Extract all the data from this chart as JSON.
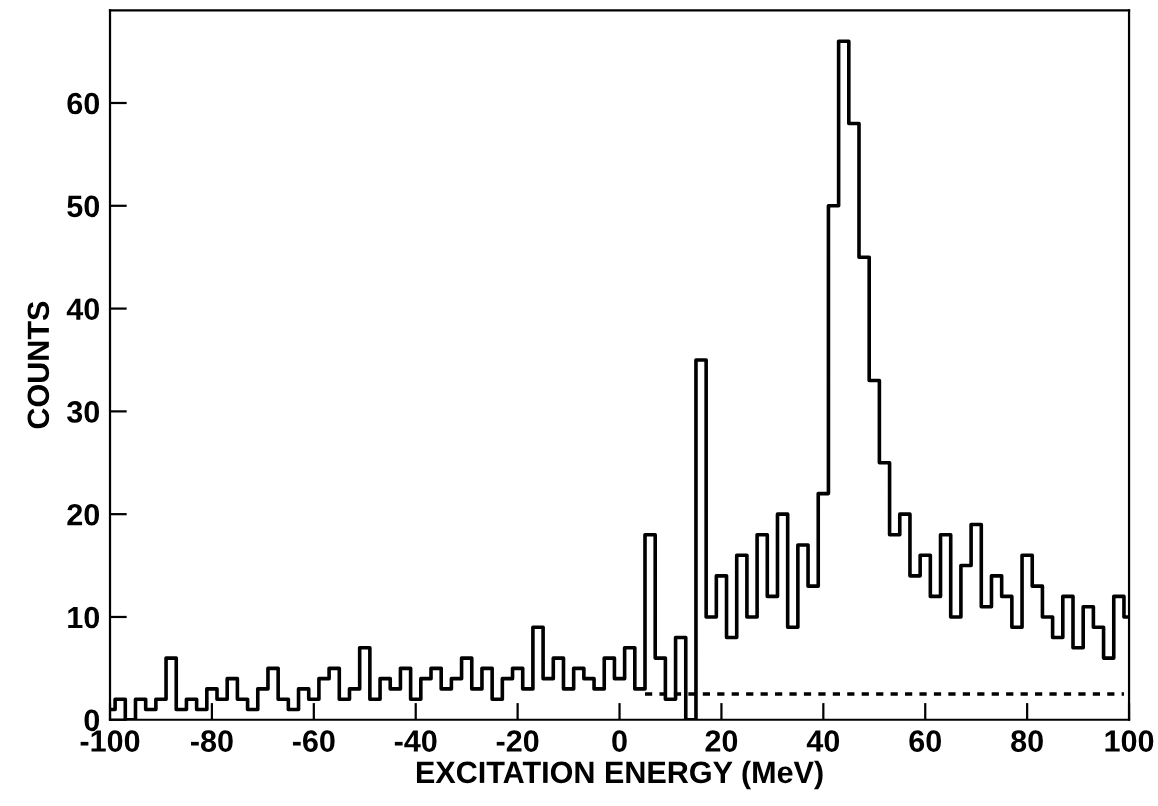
{
  "chart_data": {
    "type": "step",
    "xlabel": "EXCITATION ENERGY (MeV)",
    "ylabel": "COUNTS",
    "xlim": [
      -100,
      100
    ],
    "ylim": [
      0,
      69
    ],
    "xticks": [
      -100,
      -80,
      -60,
      -40,
      -20,
      0,
      20,
      40,
      60,
      80,
      100
    ],
    "yticks": [
      0,
      10,
      20,
      30,
      40,
      50,
      60
    ],
    "grid": false,
    "legend": false,
    "series": [
      {
        "color": "#000000",
        "line_style": "solid",
        "x": [
          -100,
          -98,
          -96,
          -94,
          -92,
          -90,
          -88,
          -86,
          -84,
          -82,
          -80,
          -78,
          -76,
          -74,
          -72,
          -70,
          -68,
          -66,
          -64,
          -62,
          -60,
          -58,
          -56,
          -54,
          -52,
          -50,
          -48,
          -46,
          -44,
          -42,
          -40,
          -38,
          -36,
          -34,
          -32,
          -30,
          -28,
          -26,
          -24,
          -22,
          -20,
          -18,
          -16,
          -14,
          -12,
          -10,
          -8,
          -6,
          -4,
          -2,
          0,
          2,
          4,
          6,
          8,
          10,
          12,
          14,
          16,
          18,
          20,
          22,
          24,
          26,
          28,
          30,
          32,
          34,
          36,
          38,
          40,
          42,
          44,
          46,
          48,
          50,
          52,
          54,
          56,
          58,
          60,
          62,
          64,
          66,
          68,
          70,
          72,
          74,
          76,
          78,
          80,
          82,
          84,
          86,
          88,
          90,
          92,
          94,
          96,
          98,
          100
        ],
        "values": [
          1,
          2,
          0,
          2,
          1,
          2,
          6,
          1,
          2,
          1,
          3,
          2,
          4,
          2,
          1,
          3,
          5,
          2,
          1,
          3,
          2,
          4,
          5,
          2,
          3,
          7,
          2,
          4,
          3,
          5,
          2,
          4,
          5,
          3,
          4,
          6,
          3,
          5,
          2,
          4,
          5,
          3,
          9,
          4,
          6,
          3,
          5,
          4,
          3,
          6,
          4,
          7,
          3,
          18,
          6,
          2,
          8,
          0,
          35,
          10,
          14,
          8,
          16,
          10,
          18,
          12,
          20,
          9,
          17,
          13,
          22,
          50,
          66,
          58,
          45,
          33,
          25,
          18,
          20,
          14,
          16,
          12,
          18,
          10,
          15,
          19,
          11,
          14,
          12,
          9,
          16,
          13,
          10,
          8,
          12,
          7,
          11,
          9,
          6,
          12,
          10
        ]
      },
      {
        "type": "line",
        "color": "#000000",
        "line_style": "dashed",
        "x": [
          5,
          99
        ],
        "values": [
          2.5,
          2.5
        ]
      }
    ]
  }
}
